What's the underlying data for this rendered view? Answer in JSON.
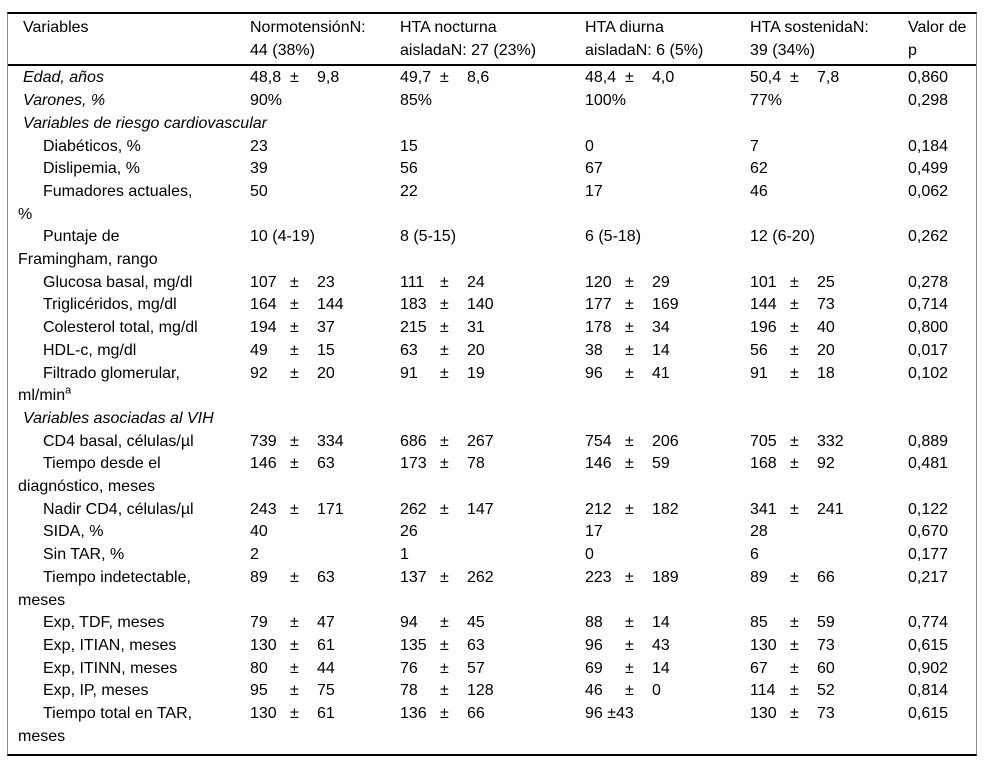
{
  "table": {
    "plus_minus": "±",
    "header": {
      "columns": [
        {
          "lines": [
            "Variables"
          ]
        },
        {
          "lines": [
            "NormotensiónN:",
            "44 (38%)"
          ]
        },
        {
          "lines": [
            "HTA nocturna",
            "aisladaN: 27 (23%)"
          ]
        },
        {
          "lines": [
            "HTA diurna",
            "aisladaN: 6 (5%)"
          ]
        },
        {
          "lines": [
            "HTA sostenidaN:",
            "39 (34%)"
          ]
        },
        {
          "lines": [
            "Valor de",
            "p"
          ]
        }
      ]
    },
    "rows": [
      {
        "style": "top",
        "label_lines": [
          "Edad, años"
        ],
        "cells": [
          {
            "v": "48,8",
            "sd": "9,8"
          },
          {
            "v": "49,7",
            "sd": "8,6"
          },
          {
            "v": "48,4",
            "sd": "4,0"
          },
          {
            "v": "50,4",
            "sd": "7,8"
          }
        ],
        "p": "0,860"
      },
      {
        "style": "top",
        "label_lines": [
          "Varones, %"
        ],
        "cells": [
          "90%",
          "85%",
          "100%",
          "77%"
        ],
        "p": "0,298"
      },
      {
        "style": "section",
        "label_lines": [
          "Variables de riesgo cardiovascular"
        ],
        "cells": [
          "",
          "",
          "",
          ""
        ],
        "p": ""
      },
      {
        "style": "sub",
        "label_lines": [
          "Diabéticos, %"
        ],
        "cells": [
          "23",
          "15",
          "0",
          "7"
        ],
        "p": "0,184"
      },
      {
        "style": "sub",
        "label_lines": [
          "Dislipemia, %"
        ],
        "cells": [
          "39",
          "56",
          "67",
          "62"
        ],
        "p": "0,499"
      },
      {
        "style": "sub",
        "label_lines": [
          "Fumadores actuales,",
          "%"
        ],
        "cells": [
          "50",
          "22",
          "17",
          "46"
        ],
        "p": "0,062"
      },
      {
        "style": "sub",
        "label_lines": [
          "Puntaje de",
          "Framingham, rango"
        ],
        "cells": [
          "10 (4-19)",
          "8 (5-15)",
          "6 (5-18)",
          "12 (6-20)"
        ],
        "p": "0,262"
      },
      {
        "style": "sub",
        "label_lines": [
          "Glucosa basal, mg/dl"
        ],
        "cells": [
          {
            "v": "107",
            "sd": "23"
          },
          {
            "v": "111",
            "sd": "24"
          },
          {
            "v": "120",
            "sd": "29"
          },
          {
            "v": "101",
            "sd": "25"
          }
        ],
        "p": "0,278"
      },
      {
        "style": "sub",
        "label_lines": [
          "Triglicéridos, mg/dl"
        ],
        "cells": [
          {
            "v": "164",
            "sd": "144"
          },
          {
            "v": "183",
            "sd": "140"
          },
          {
            "v": "177",
            "sd": "169"
          },
          {
            "v": "144",
            "sd": "73"
          }
        ],
        "p": "0,714"
      },
      {
        "style": "sub",
        "label_lines": [
          "Colesterol total, mg/dl"
        ],
        "cells": [
          {
            "v": "194",
            "sd": "37"
          },
          {
            "v": "215",
            "sd": "31"
          },
          {
            "v": "178",
            "sd": "34"
          },
          {
            "v": "196",
            "sd": "40"
          }
        ],
        "p": "0,800"
      },
      {
        "style": "sub",
        "label_lines": [
          "HDL-c, mg/dl"
        ],
        "cells": [
          {
            "v": "49",
            "sd": "15"
          },
          {
            "v": "63",
            "sd": "20"
          },
          {
            "v": "38",
            "sd": "14"
          },
          {
            "v": "56",
            "sd": "20"
          }
        ],
        "p": "0,017"
      },
      {
        "style": "sub",
        "label_lines": [
          "Filtrado glomerular,",
          "ml/min"
        ],
        "label_sup": "a",
        "cells": [
          {
            "v": "92",
            "sd": "20"
          },
          {
            "v": "91",
            "sd": "19"
          },
          {
            "v": "96",
            "sd": "41"
          },
          {
            "v": "91",
            "sd": "18"
          }
        ],
        "p": "0,102"
      },
      {
        "style": "section",
        "label_lines": [
          "Variables asociadas al VIH"
        ],
        "cells": [
          "",
          "",
          "",
          ""
        ],
        "p": ""
      },
      {
        "style": "sub",
        "label_lines": [
          "CD4 basal, células/µl"
        ],
        "cells": [
          {
            "v": "739",
            "sd": "334"
          },
          {
            "v": "686",
            "sd": "267"
          },
          {
            "v": "754",
            "sd": "206"
          },
          {
            "v": "705",
            "sd": "332"
          }
        ],
        "p": "0,889"
      },
      {
        "style": "sub",
        "label_lines": [
          "Tiempo desde el",
          "diagnóstico, meses"
        ],
        "cells": [
          {
            "v": "146",
            "sd": "63"
          },
          {
            "v": "173",
            "sd": "78"
          },
          {
            "v": "146",
            "sd": "59"
          },
          {
            "v": "168",
            "sd": "92"
          }
        ],
        "p": "0,481"
      },
      {
        "style": "sub",
        "label_lines": [
          "Nadir CD4, células/µl"
        ],
        "cells": [
          {
            "v": "243",
            "sd": "171"
          },
          {
            "v": "262",
            "sd": "147"
          },
          {
            "v": "212",
            "sd": "182"
          },
          {
            "v": "341",
            "sd": "241"
          }
        ],
        "p": "0,122"
      },
      {
        "style": "sub",
        "label_lines": [
          "SIDA, %"
        ],
        "cells": [
          "40",
          "26",
          "17",
          "28"
        ],
        "p": "0,670"
      },
      {
        "style": "sub",
        "label_lines": [
          "Sin TAR, %"
        ],
        "cells": [
          "2",
          "1",
          "0",
          "6"
        ],
        "p": "0,177"
      },
      {
        "style": "sub",
        "label_lines": [
          "Tiempo indetectable,",
          "meses"
        ],
        "cells": [
          {
            "v": "89",
            "sd": "63"
          },
          {
            "v": "137",
            "sd": "262"
          },
          {
            "v": "223",
            "sd": "189"
          },
          {
            "v": "89",
            "sd": "66"
          }
        ],
        "p": "0,217"
      },
      {
        "style": "sub",
        "label_lines": [
          "Exp, TDF, meses"
        ],
        "cells": [
          {
            "v": "79",
            "sd": "47"
          },
          {
            "v": "94",
            "sd": "45"
          },
          {
            "v": "88",
            "sd": "14"
          },
          {
            "v": "85",
            "sd": "59"
          }
        ],
        "p": "0,774"
      },
      {
        "style": "sub",
        "label_lines": [
          "Exp, ITIAN, meses"
        ],
        "cells": [
          {
            "v": "130",
            "sd": "61"
          },
          {
            "v": "135",
            "sd": "63"
          },
          {
            "v": "96",
            "sd": "43"
          },
          {
            "v": "130",
            "sd": "73"
          }
        ],
        "p": "0,615"
      },
      {
        "style": "sub",
        "label_lines": [
          "Exp, ITINN, meses"
        ],
        "cells": [
          {
            "v": "80",
            "sd": "44"
          },
          {
            "v": "76",
            "sd": "57"
          },
          {
            "v": "69",
            "sd": "14"
          },
          {
            "v": "67",
            "sd": "60"
          }
        ],
        "p": "0,902"
      },
      {
        "style": "sub",
        "label_lines": [
          "Exp, IP, meses"
        ],
        "cells": [
          {
            "v": "95",
            "sd": "75"
          },
          {
            "v": "78",
            "sd": "128"
          },
          {
            "v": "46",
            "sd": "0"
          },
          {
            "v": "114",
            "sd": "52"
          }
        ],
        "p": "0,814"
      },
      {
        "style": "sub",
        "label_lines": [
          "Tiempo total en TAR,",
          "meses"
        ],
        "cells": [
          {
            "v": "130",
            "sd": "61"
          },
          {
            "v": "136",
            "sd": "66"
          },
          "96 ±43",
          {
            "v": "130",
            "sd": "73"
          }
        ],
        "p": "0,615"
      }
    ]
  }
}
